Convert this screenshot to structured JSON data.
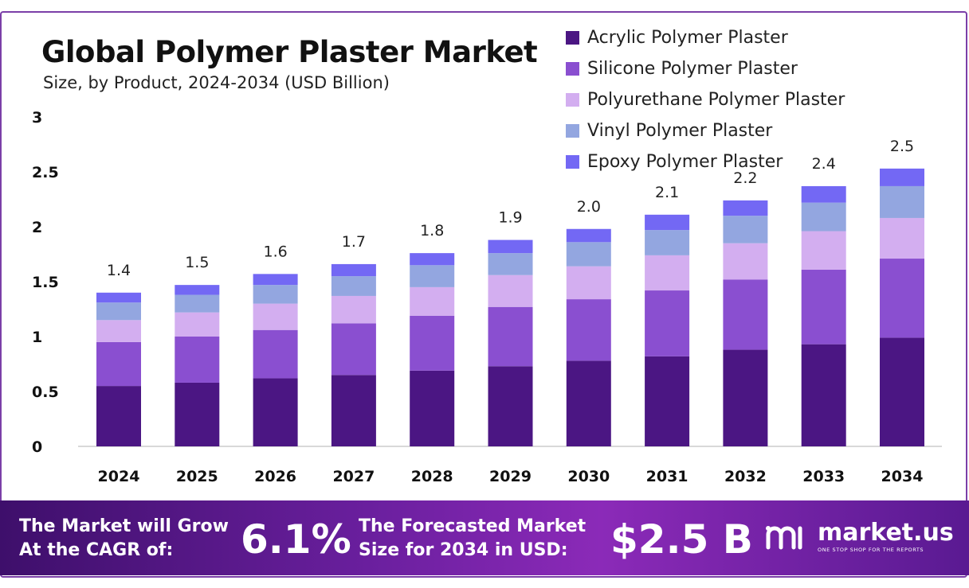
{
  "header": {
    "title": "Global Polymer Plaster Market",
    "subtitle": "Size, by Product, 2024-2034 (USD Billion)"
  },
  "chart_data": {
    "type": "bar",
    "stacked": true,
    "categories": [
      "2024",
      "2025",
      "2026",
      "2027",
      "2028",
      "2029",
      "2030",
      "2031",
      "2032",
      "2033",
      "2034"
    ],
    "totals_labels": [
      "1.4",
      "1.5",
      "1.6",
      "1.7",
      "1.8",
      "1.9",
      "2.0",
      "2.1",
      "2.2",
      "2.4",
      "2.5"
    ],
    "series": [
      {
        "name": "Acrylic Polymer Plaster",
        "color": "#4b1683",
        "values": [
          0.55,
          0.58,
          0.62,
          0.65,
          0.69,
          0.73,
          0.78,
          0.82,
          0.88,
          0.93,
          0.99
        ]
      },
      {
        "name": "Silicone Polymer Plaster",
        "color": "#8a4fd0",
        "values": [
          0.4,
          0.42,
          0.44,
          0.47,
          0.5,
          0.54,
          0.56,
          0.6,
          0.64,
          0.68,
          0.72
        ]
      },
      {
        "name": "Polyurethane Polymer Plaster",
        "color": "#d3aef0",
        "values": [
          0.2,
          0.22,
          0.24,
          0.25,
          0.26,
          0.29,
          0.3,
          0.32,
          0.33,
          0.35,
          0.37
        ]
      },
      {
        "name": "Vinyl Polymer Plaster",
        "color": "#93a6e0",
        "values": [
          0.16,
          0.16,
          0.17,
          0.18,
          0.2,
          0.2,
          0.22,
          0.23,
          0.25,
          0.26,
          0.29
        ]
      },
      {
        "name": "Epoxy Polymer Plaster",
        "color": "#7368f4",
        "values": [
          0.09,
          0.09,
          0.1,
          0.11,
          0.11,
          0.12,
          0.12,
          0.14,
          0.14,
          0.15,
          0.16
        ]
      }
    ],
    "yticks": [
      "0",
      "0.5",
      "1",
      "1.5",
      "2",
      "2.5",
      "3"
    ],
    "ylim": [
      0,
      3
    ],
    "grid": false,
    "legend_position": "top-right"
  },
  "footer": {
    "cagr_text_line1": "The Market will Grow",
    "cagr_text_line2": "At the CAGR of:",
    "cagr_value": "6.1%",
    "forecast_text_line1": "The Forecasted Market",
    "forecast_text_line2": "Size for 2034 in USD:",
    "forecast_value": "$2.5 B",
    "brand_name": "market.us",
    "brand_tagline": "ONE STOP SHOP FOR THE REPORTS"
  }
}
